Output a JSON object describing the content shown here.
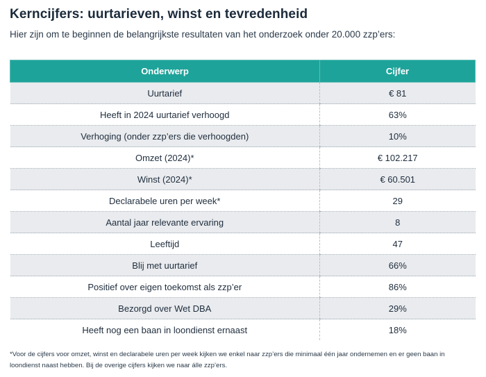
{
  "title": "Kerncijfers: uurtarieven, winst en tevredenheid",
  "subtitle": "Hier zijn om te beginnen de belangrijkste resultaten van het onderzoek onder 20.000 zzp’ers:",
  "table": {
    "headers": [
      "Onderwerp",
      "Cijfer"
    ],
    "rows": [
      {
        "label": "Uurtarief",
        "value": "€ 81"
      },
      {
        "label": "Heeft in 2024 uurtarief verhoogd",
        "value": "63%"
      },
      {
        "label": "Verhoging (onder zzp’ers die verhoogden)",
        "value": "10%"
      },
      {
        "label": "Omzet (2024)*",
        "value": "€ 102.217"
      },
      {
        "label": "Winst (2024)*",
        "value": "€ 60.501"
      },
      {
        "label": "Declarabele uren per week*",
        "value": "29"
      },
      {
        "label": "Aantal jaar relevante ervaring",
        "value": "8"
      },
      {
        "label": "Leeftijd",
        "value": "47"
      },
      {
        "label": "Blij met uurtarief",
        "value": "66%"
      },
      {
        "label": "Positief over eigen toekomst als zzp’er",
        "value": "86%"
      },
      {
        "label": "Bezorgd over Wet DBA",
        "value": "29%"
      },
      {
        "label": "Heeft nog een baan in loondienst ernaast",
        "value": "18%"
      }
    ]
  },
  "footnote": "*Voor de cijfers voor omzet, winst en declarabele uren per week kijken we enkel naar zzp’ers die minimaal één jaar ondernemen en er geen baan in loondienst naast hebben. Bij de overige cijfers kijken we naar álle zzp’ers.",
  "colors": {
    "header_bg": "#1ea39a",
    "row_alt_bg": "#e9ebee"
  }
}
